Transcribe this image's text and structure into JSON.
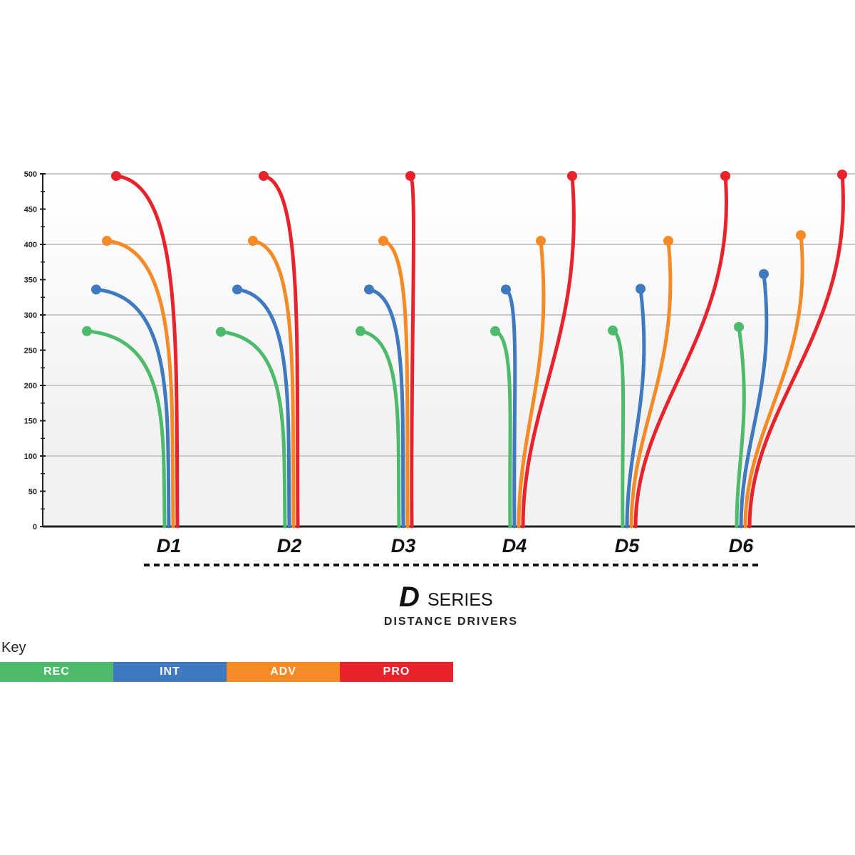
{
  "chart_data": {
    "type": "line",
    "title": "SERIES",
    "subtitle": "DISTANCE DRIVERS",
    "logo_letter": "D",
    "ylim": [
      0,
      500
    ],
    "y_ticks": [
      "0",
      "50",
      "100",
      "150",
      "200",
      "250",
      "300",
      "350",
      "400",
      "450",
      "500"
    ],
    "grid": true,
    "categories": [
      "D1",
      "D2",
      "D3",
      "D4",
      "D5",
      "D6"
    ],
    "highlight_category": "D2",
    "highlight_color": "#7dc242",
    "series_colors": {
      "REC": "#4dbb6b",
      "INT": "#3f79c0",
      "ADV": "#f58a27",
      "PRO": "#e8232c"
    },
    "series": [
      {
        "name": "REC",
        "values": [
          277,
          276,
          277,
          277,
          278,
          283
        ]
      },
      {
        "name": "INT",
        "values": [
          336,
          336,
          336,
          336,
          337,
          358
        ]
      },
      {
        "name": "ADV",
        "values": [
          405,
          405,
          405,
          405,
          405,
          413
        ]
      },
      {
        "name": "PRO",
        "values": [
          497,
          497,
          497,
          497,
          497,
          499
        ]
      }
    ]
  },
  "key": {
    "title": "Key",
    "items": [
      {
        "label": "REC",
        "color": "#4dbb6b"
      },
      {
        "label": "INT",
        "color": "#3f79c0"
      },
      {
        "label": "ADV",
        "color": "#f58a27"
      },
      {
        "label": "PRO",
        "color": "#e8232c"
      }
    ]
  }
}
